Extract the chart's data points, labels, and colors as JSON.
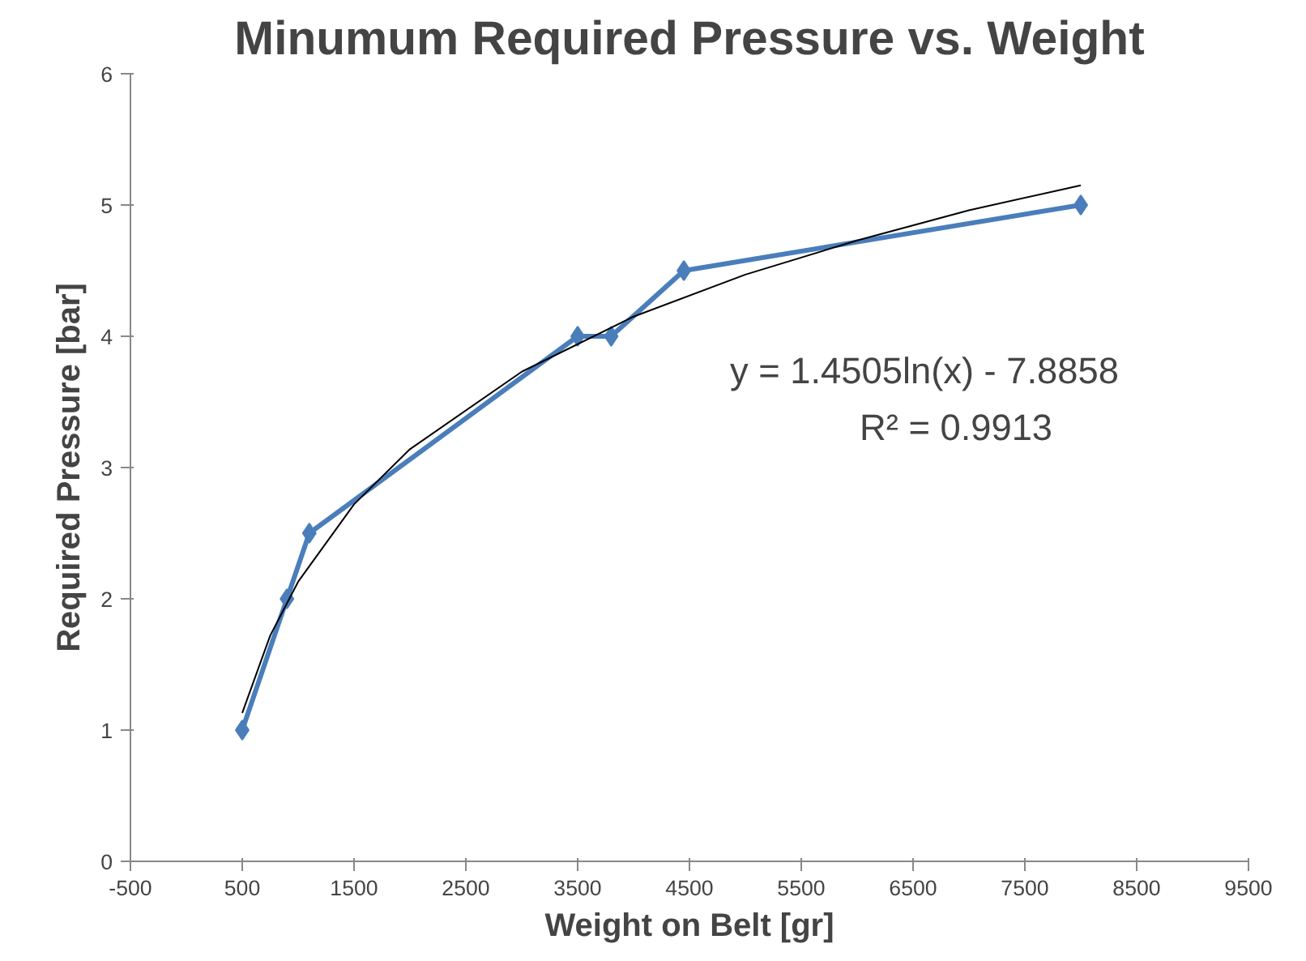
{
  "chart_data": {
    "type": "line",
    "title": "Minumum Required Pressure vs. Weight",
    "xlabel": "Weight on Belt [gr]",
    "ylabel": "Required Pressure [bar]",
    "xlim": [
      -500,
      9500
    ],
    "xticks": [
      -500,
      500,
      1500,
      2500,
      3500,
      4500,
      5500,
      6500,
      7500,
      8500,
      9500
    ],
    "ylim": [
      0,
      6
    ],
    "yticks": [
      0,
      1,
      2,
      3,
      4,
      5,
      6
    ],
    "grid": false,
    "series": [
      {
        "color": "#4a7ebb",
        "marker": "diamond",
        "line_style": "solid",
        "x": [
          500,
          900,
          1100,
          3500,
          3800,
          4450,
          8000
        ],
        "values": [
          1,
          2,
          2.5,
          4,
          4,
          4.5,
          5
        ]
      },
      {
        "color": "#000000",
        "marker": "none",
        "line_style": "solid",
        "x": [
          500,
          750,
          1000,
          1500,
          2000,
          3000,
          4000,
          5000,
          6000,
          7000,
          8000
        ],
        "values": [
          1.13,
          1.72,
          2.13,
          2.72,
          3.14,
          3.73,
          4.15,
          4.47,
          4.73,
          4.96,
          5.15
        ]
      }
    ],
    "annotations": [
      "y = 1.4505ln(x) - 7.8858",
      "R² = 0.9913"
    ]
  }
}
